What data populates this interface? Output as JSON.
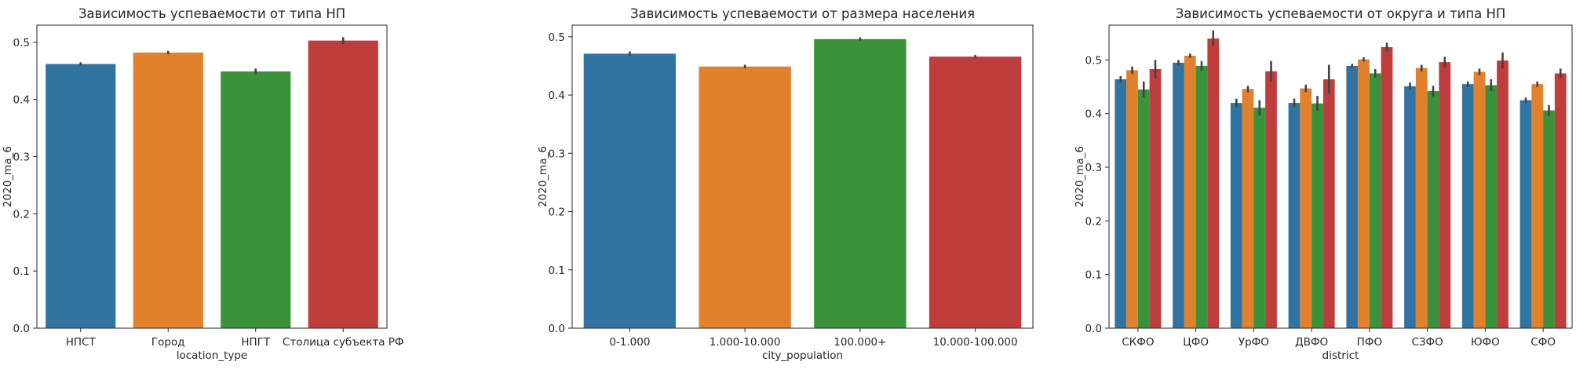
{
  "colors": {
    "series": [
      "#3274a1",
      "#e1812c",
      "#3a923a",
      "#c03d3e"
    ],
    "errorbar": "#424242",
    "axis": "#262626"
  },
  "chart_data": [
    {
      "type": "bar",
      "title": "Зависимость успеваемости от типа НП",
      "xlabel": "location_type",
      "ylabel": "2020_ma_6",
      "ylim": [
        0,
        0.53
      ],
      "yticks": [
        0.0,
        0.1,
        0.2,
        0.3,
        0.4,
        0.5
      ],
      "ytick_labels": [
        "0.0",
        "0.1",
        "0.2",
        "0.3",
        "0.4",
        "0.5"
      ],
      "categories": [
        "НПСТ",
        "Город",
        "НПГТ",
        "Столица субъекта РФ"
      ],
      "values": [
        0.462,
        0.482,
        0.449,
        0.503
      ],
      "errors": [
        [
          0.459,
          0.465
        ],
        [
          0.479,
          0.485
        ],
        [
          0.444,
          0.454
        ],
        [
          0.497,
          0.509
        ]
      ],
      "grid": false,
      "legend": "none"
    },
    {
      "type": "bar",
      "title": "Зависимость успеваемости от размера населения",
      "xlabel": "city_population",
      "ylabel": "2020_ma_6",
      "ylim": [
        0,
        0.52
      ],
      "yticks": [
        0.0,
        0.1,
        0.2,
        0.3,
        0.4,
        0.5
      ],
      "ytick_labels": [
        "0.0",
        "0.1",
        "0.2",
        "0.3",
        "0.4",
        "0.5"
      ],
      "categories": [
        "0-1.000",
        "1.000-10.000",
        "100.000+",
        "10.000-100.000"
      ],
      "values": [
        0.471,
        0.449,
        0.496,
        0.466
      ],
      "errors": [
        [
          0.467,
          0.475
        ],
        [
          0.446,
          0.452
        ],
        [
          0.493,
          0.499
        ],
        [
          0.463,
          0.469
        ]
      ],
      "grid": false,
      "legend": "none"
    },
    {
      "type": "bar",
      "title": "Зависимость успеваемости от округа и типа НП",
      "xlabel": "district",
      "ylabel": "2020_ma_6",
      "ylim": [
        0,
        0.565
      ],
      "yticks": [
        0.0,
        0.1,
        0.2,
        0.3,
        0.4,
        0.5
      ],
      "ytick_labels": [
        "0.0",
        "0.1",
        "0.2",
        "0.3",
        "0.4",
        "0.5"
      ],
      "categories": [
        "СКФО",
        "ЦФО",
        "УрФО",
        "ДВФО",
        "ПФО",
        "СЗФО",
        "ЮФО",
        "СФО"
      ],
      "series": [
        {
          "values": [
            0.464,
            0.495,
            0.42,
            0.42,
            0.489,
            0.451,
            0.455,
            0.425
          ],
          "errors": [
            [
              0.458,
              0.47
            ],
            [
              0.49,
              0.5
            ],
            [
              0.412,
              0.428
            ],
            [
              0.412,
              0.428
            ],
            [
              0.485,
              0.493
            ],
            [
              0.444,
              0.458
            ],
            [
              0.45,
              0.46
            ],
            [
              0.42,
              0.43
            ]
          ]
        },
        {
          "values": [
            0.481,
            0.508,
            0.446,
            0.447,
            0.501,
            0.485,
            0.478,
            0.455
          ],
          "errors": [
            [
              0.474,
              0.488
            ],
            [
              0.504,
              0.512
            ],
            [
              0.44,
              0.452
            ],
            [
              0.44,
              0.454
            ],
            [
              0.497,
              0.505
            ],
            [
              0.479,
              0.491
            ],
            [
              0.472,
              0.484
            ],
            [
              0.45,
              0.46
            ]
          ]
        },
        {
          "values": [
            0.445,
            0.489,
            0.411,
            0.419,
            0.475,
            0.442,
            0.453,
            0.406
          ],
          "errors": [
            [
              0.43,
              0.46
            ],
            [
              0.48,
              0.498
            ],
            [
              0.397,
              0.425
            ],
            [
              0.405,
              0.433
            ],
            [
              0.467,
              0.483
            ],
            [
              0.432,
              0.452
            ],
            [
              0.442,
              0.464
            ],
            [
              0.396,
              0.416
            ]
          ]
        },
        {
          "values": [
            0.483,
            0.54,
            0.479,
            0.464,
            0.524,
            0.496,
            0.499,
            0.475
          ],
          "errors": [
            [
              0.466,
              0.5
            ],
            [
              0.527,
              0.555
            ],
            [
              0.46,
              0.498
            ],
            [
              0.437,
              0.491
            ],
            [
              0.516,
              0.532
            ],
            [
              0.486,
              0.506
            ],
            [
              0.484,
              0.514
            ],
            [
              0.466,
              0.484
            ]
          ]
        }
      ],
      "grid": false,
      "legend": "none"
    }
  ]
}
